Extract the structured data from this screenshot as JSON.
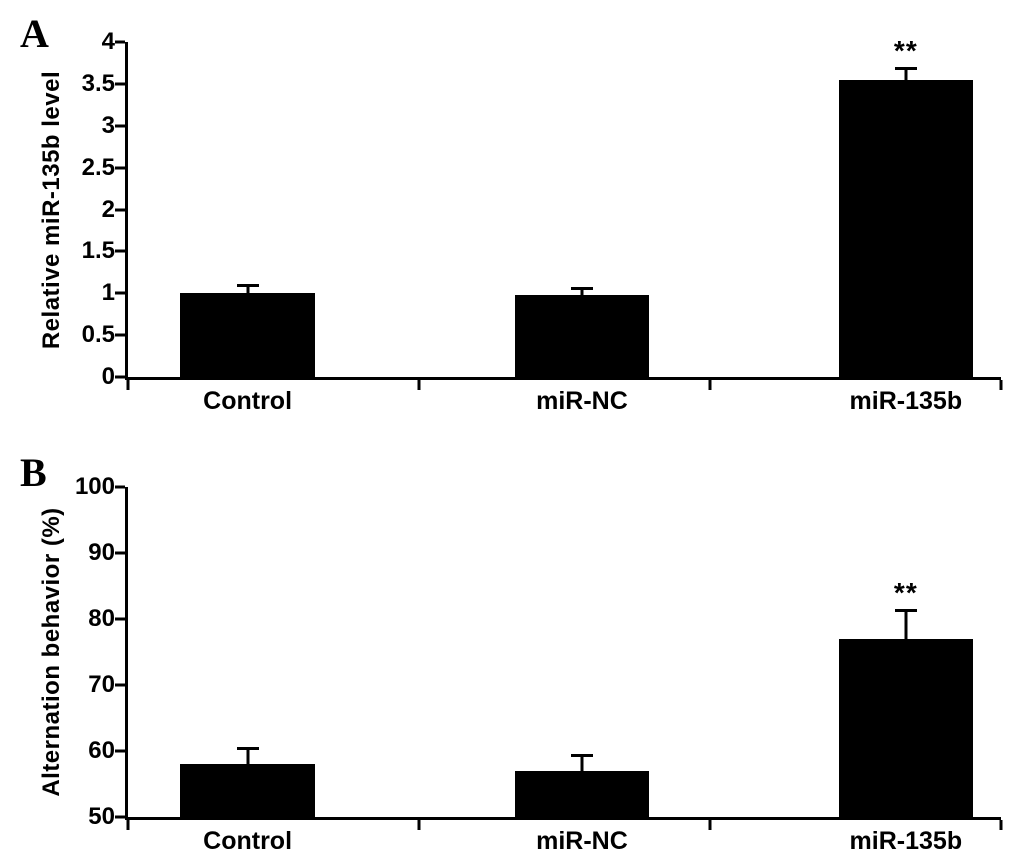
{
  "chart_data": [
    {
      "type": "bar",
      "panel": "A",
      "title": "",
      "categories": [
        "Control",
        "miR-NC",
        "miR-135b"
      ],
      "values": [
        1.0,
        0.98,
        3.55
      ],
      "errors": [
        0.07,
        0.06,
        0.12
      ],
      "significance": [
        "",
        "",
        "**"
      ],
      "xlabel": "",
      "ylabel": "Relative miR-135b level",
      "ylim": [
        0,
        4
      ],
      "yticks": [
        0,
        0.5,
        1,
        1.5,
        2,
        2.5,
        3,
        3.5,
        4
      ],
      "bar_color": "#000000",
      "grid": false,
      "legend": false
    },
    {
      "type": "bar",
      "panel": "B",
      "title": "",
      "categories": [
        "Control",
        "miR-NC",
        "miR-135b"
      ],
      "values": [
        58,
        57,
        77
      ],
      "errors": [
        2.2,
        2.1,
        4
      ],
      "significance": [
        "",
        "",
        "**"
      ],
      "xlabel": "",
      "ylabel": "Alternation behavior (%)",
      "ylim": [
        50,
        100
      ],
      "yticks": [
        50,
        60,
        70,
        80,
        90,
        100
      ],
      "bar_color": "#000000",
      "grid": false,
      "legend": false
    }
  ]
}
